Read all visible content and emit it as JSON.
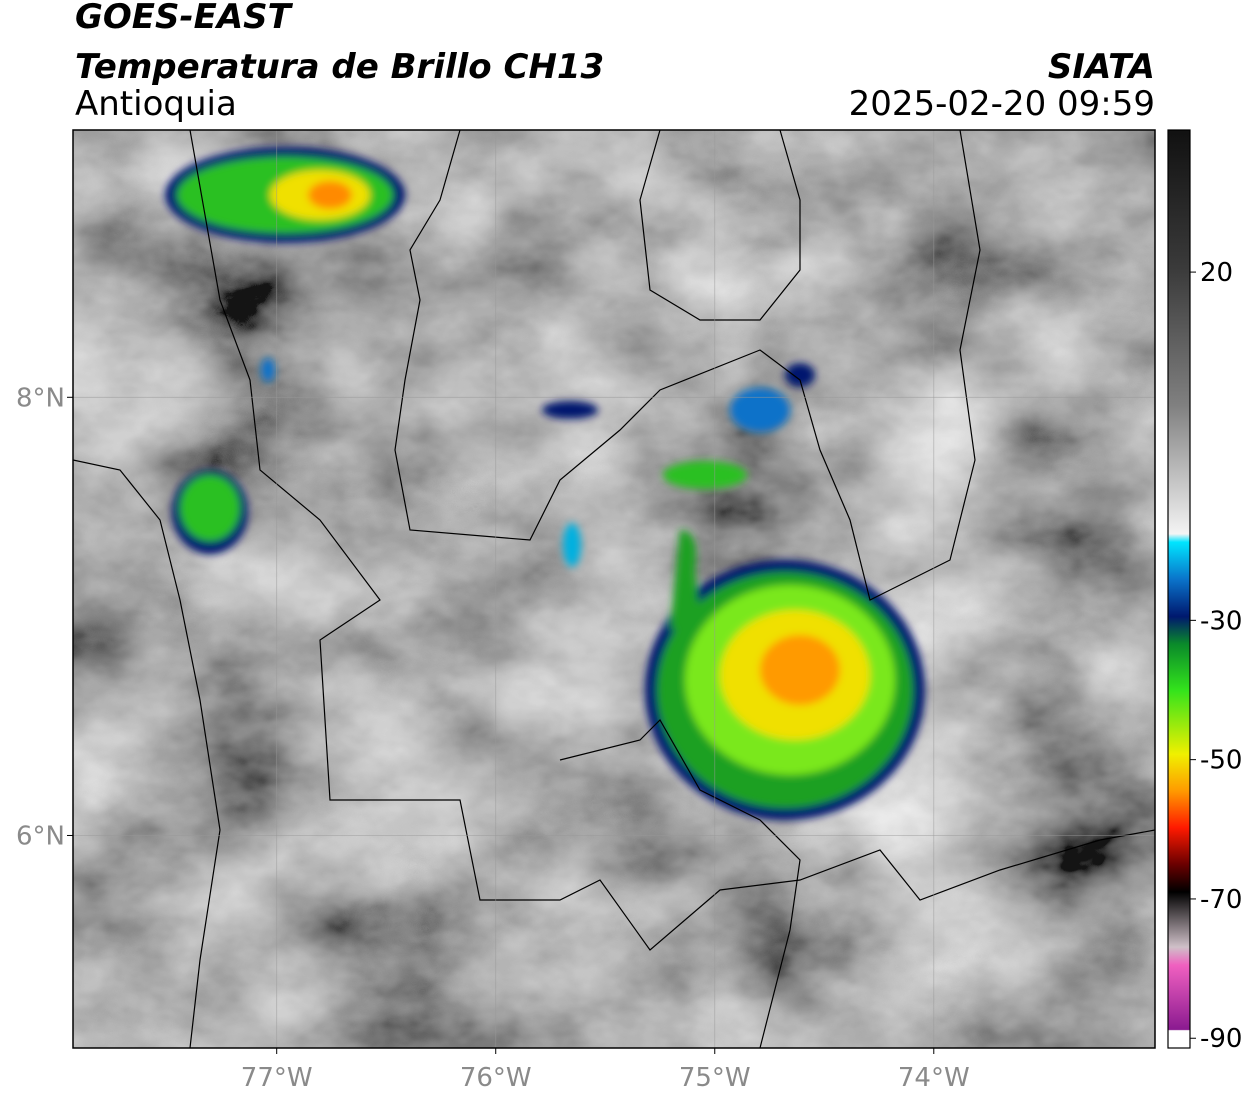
{
  "map": {
    "title": "GOES-EAST",
    "subtitle": "Temperatura de Brillo CH13",
    "region": "Antioquia",
    "source": "SIATA",
    "timestamp": "2025-02-20 09:59",
    "xlim": [
      -77.93,
      -72.99
    ],
    "ylim": [
      5.03,
      9.22
    ],
    "xticks": [
      {
        "value": -77,
        "label": "77°W"
      },
      {
        "value": -76,
        "label": "76°W"
      },
      {
        "value": -75,
        "label": "75°W"
      },
      {
        "value": -74,
        "label": "74°W"
      }
    ],
    "yticks": [
      {
        "value": 6,
        "label": "6°N"
      },
      {
        "value": 8,
        "label": "8°N"
      }
    ],
    "grid": true,
    "colorbar": {
      "lim": [
        -91.4,
        40.4
      ],
      "ticks": [
        20,
        -30,
        -50,
        -70,
        -90
      ]
    }
  }
}
